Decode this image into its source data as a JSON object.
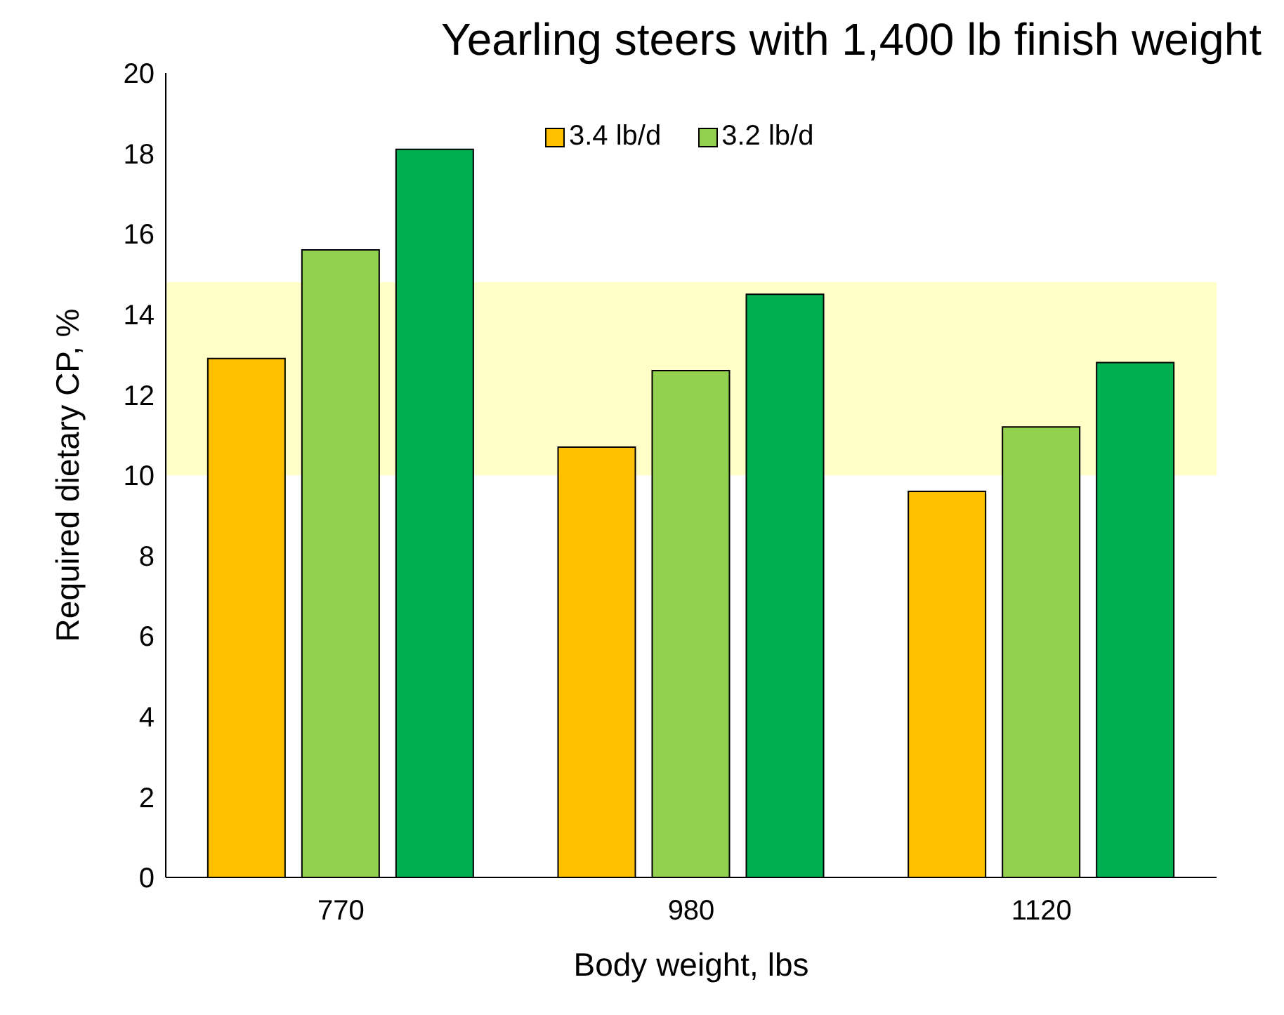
{
  "chart_data": {
    "type": "bar",
    "title": "Yearling steers with 1,400 lb finish weight",
    "xlabel": "Body weight, lbs",
    "ylabel": "Required dietary CP, %",
    "categories": [
      "770",
      "980",
      "1120"
    ],
    "series": [
      {
        "name": "3.4 lb/d",
        "color": "#ffc000",
        "values": [
          12.9,
          10.7,
          9.6
        ]
      },
      {
        "name": "3.2 lb/d",
        "color": "#92d050",
        "values": [
          15.6,
          12.6,
          11.2
        ]
      },
      {
        "color": "#00b050",
        "values": [
          18.1,
          14.5,
          12.8
        ]
      }
    ],
    "ylim": [
      0,
      20
    ],
    "yticks": [
      0,
      2,
      4,
      6,
      8,
      10,
      12,
      14,
      16,
      18,
      20
    ],
    "grid": false,
    "legend": "top",
    "bands": [
      {
        "axis": "y",
        "from": 10,
        "to": 14.8,
        "color": "#ffff99"
      }
    ]
  }
}
